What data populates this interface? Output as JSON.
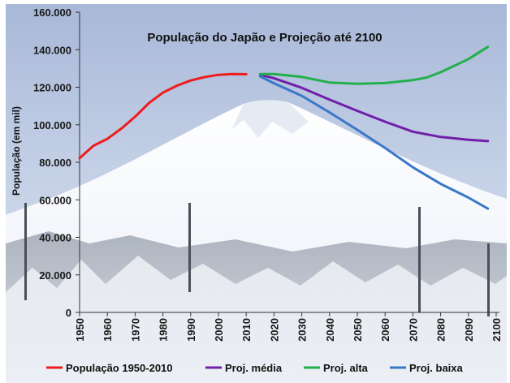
{
  "chart_data": {
    "type": "line",
    "title": "População do Japão e Projeção até 2100",
    "ylabel": "População (em mil)",
    "xlabel": "",
    "ylim": [
      0,
      160000
    ],
    "xlim": [
      1950,
      2100
    ],
    "grid": false,
    "legend_position": "bottom",
    "y_ticks": [
      0,
      20000,
      40000,
      60000,
      80000,
      100000,
      120000,
      140000,
      160000
    ],
    "y_tick_labels": [
      "0",
      "20.000",
      "40.000",
      "60.000",
      "80.000",
      "100.000",
      "120.000",
      "140.000",
      "160.000"
    ],
    "x_ticks": [
      1950,
      1960,
      1970,
      1980,
      1990,
      2000,
      2010,
      2020,
      2030,
      2040,
      2050,
      2060,
      2070,
      2080,
      2090,
      2100
    ],
    "x_tick_labels": [
      "1950",
      "1960",
      "1970",
      "1980",
      "1990",
      "2000",
      "2010",
      "2020",
      "2030",
      "2040",
      "2050",
      "2060",
      "2070",
      "2080",
      "2090",
      "2100"
    ],
    "series": [
      {
        "name": "População 1950-2010",
        "color": "#ee1c1c",
        "x": [
          1950,
          1955,
          1960,
          1965,
          1970,
          1975,
          1980,
          1985,
          1990,
          1995,
          2000,
          2005,
          2010
        ],
        "values": [
          82200,
          88800,
          92500,
          97900,
          104300,
          111600,
          117100,
          120800,
          123600,
          125400,
          126600,
          127000,
          126900
        ]
      },
      {
        "name": "Proj. média",
        "color": "#7020a8",
        "x": [
          2015,
          2020,
          2030,
          2040,
          2050,
          2060,
          2070,
          2080,
          2090,
          2097
        ],
        "values": [
          126600,
          124800,
          119700,
          113400,
          107400,
          101600,
          96300,
          93500,
          92000,
          91300
        ]
      },
      {
        "name": "Proj. alta",
        "color": "#22b04c",
        "x": [
          2015,
          2020,
          2030,
          2040,
          2050,
          2060,
          2070,
          2075,
          2080,
          2090,
          2097
        ],
        "values": [
          127000,
          127000,
          125500,
          122500,
          121800,
          122200,
          123800,
          125200,
          128000,
          135000,
          141500
        ]
      },
      {
        "name": "Proj. baixa",
        "color": "#3a78c8",
        "x": [
          2015,
          2020,
          2030,
          2040,
          2050,
          2060,
          2070,
          2080,
          2090,
          2097
        ],
        "values": [
          125800,
          122100,
          115400,
          106600,
          97300,
          87600,
          77300,
          68500,
          61200,
          55300
        ]
      }
    ]
  }
}
